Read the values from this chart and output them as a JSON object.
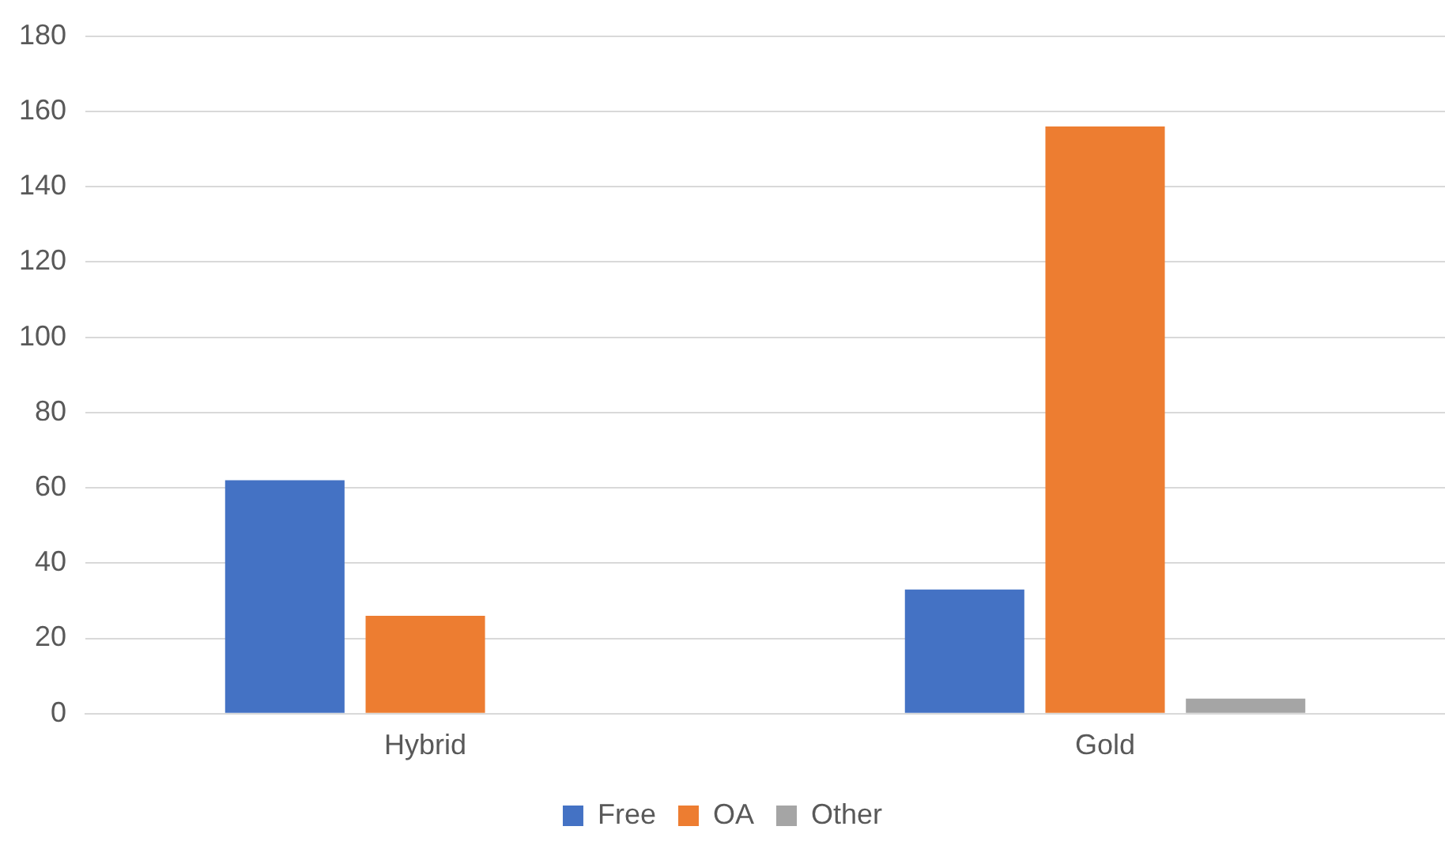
{
  "chart_data": {
    "type": "bar",
    "categories": [
      "Hybrid",
      "Gold"
    ],
    "series": [
      {
        "name": "Free",
        "color": "#4472c4",
        "values": [
          62,
          33
        ]
      },
      {
        "name": "OA",
        "color": "#ed7d31",
        "values": [
          26,
          156
        ]
      },
      {
        "name": "Other",
        "color": "#a5a5a5",
        "values": [
          0,
          4
        ]
      }
    ],
    "ylim": [
      0,
      180
    ],
    "yticks": [
      0,
      20,
      40,
      60,
      80,
      100,
      120,
      140,
      160,
      180
    ],
    "grid": "y",
    "legend": "bottom"
  }
}
